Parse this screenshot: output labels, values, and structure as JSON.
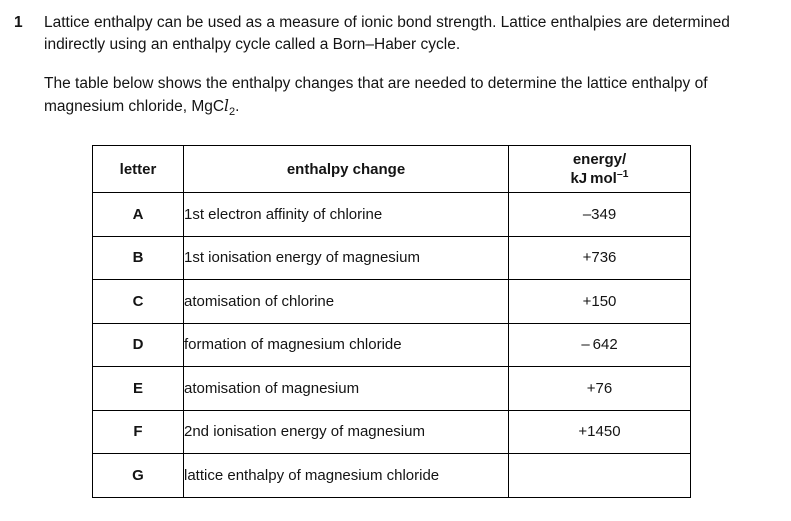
{
  "page": {
    "background_color": "#ffffff",
    "text_color": "#141414",
    "border_color": "#000000"
  },
  "question": {
    "number": "1",
    "intro": {
      "line1": "Lattice enthalpy can be used as a measure of ionic bond strength. Lattice enthalpies are determined",
      "line2": "indirectly using an enthalpy cycle called a Born–Haber cycle."
    },
    "table_intro": {
      "line1": "The table below shows the enthalpy changes that are needed to determine the lattice enthalpy of",
      "line2_prefix": "magnesium chloride, MgC",
      "formula_italic_l": "l",
      "formula_subscript": "2",
      "line2_suffix": "."
    }
  },
  "table": {
    "columns": {
      "letter": "letter",
      "change": "enthalpy change",
      "energy_line1": "energy/",
      "energy_line2_base": "kJ mol",
      "energy_line2_sup": "–1"
    },
    "rows": [
      {
        "letter": "A",
        "change": "1st electron affinity of chlorine",
        "energy": "–349"
      },
      {
        "letter": "B",
        "change": "1st ionisation energy of magnesium",
        "energy": "+736"
      },
      {
        "letter": "C",
        "change": "atomisation of chlorine",
        "energy": "+150"
      },
      {
        "letter": "D",
        "change": "formation of magnesium chloride",
        "energy": "– 642"
      },
      {
        "letter": "E",
        "change": "atomisation of magnesium",
        "energy": "+76"
      },
      {
        "letter": "F",
        "change": "2nd ionisation energy of magnesium",
        "energy": "+1450"
      },
      {
        "letter": "G",
        "change": "lattice enthalpy of magnesium chloride",
        "energy": ""
      }
    ]
  }
}
